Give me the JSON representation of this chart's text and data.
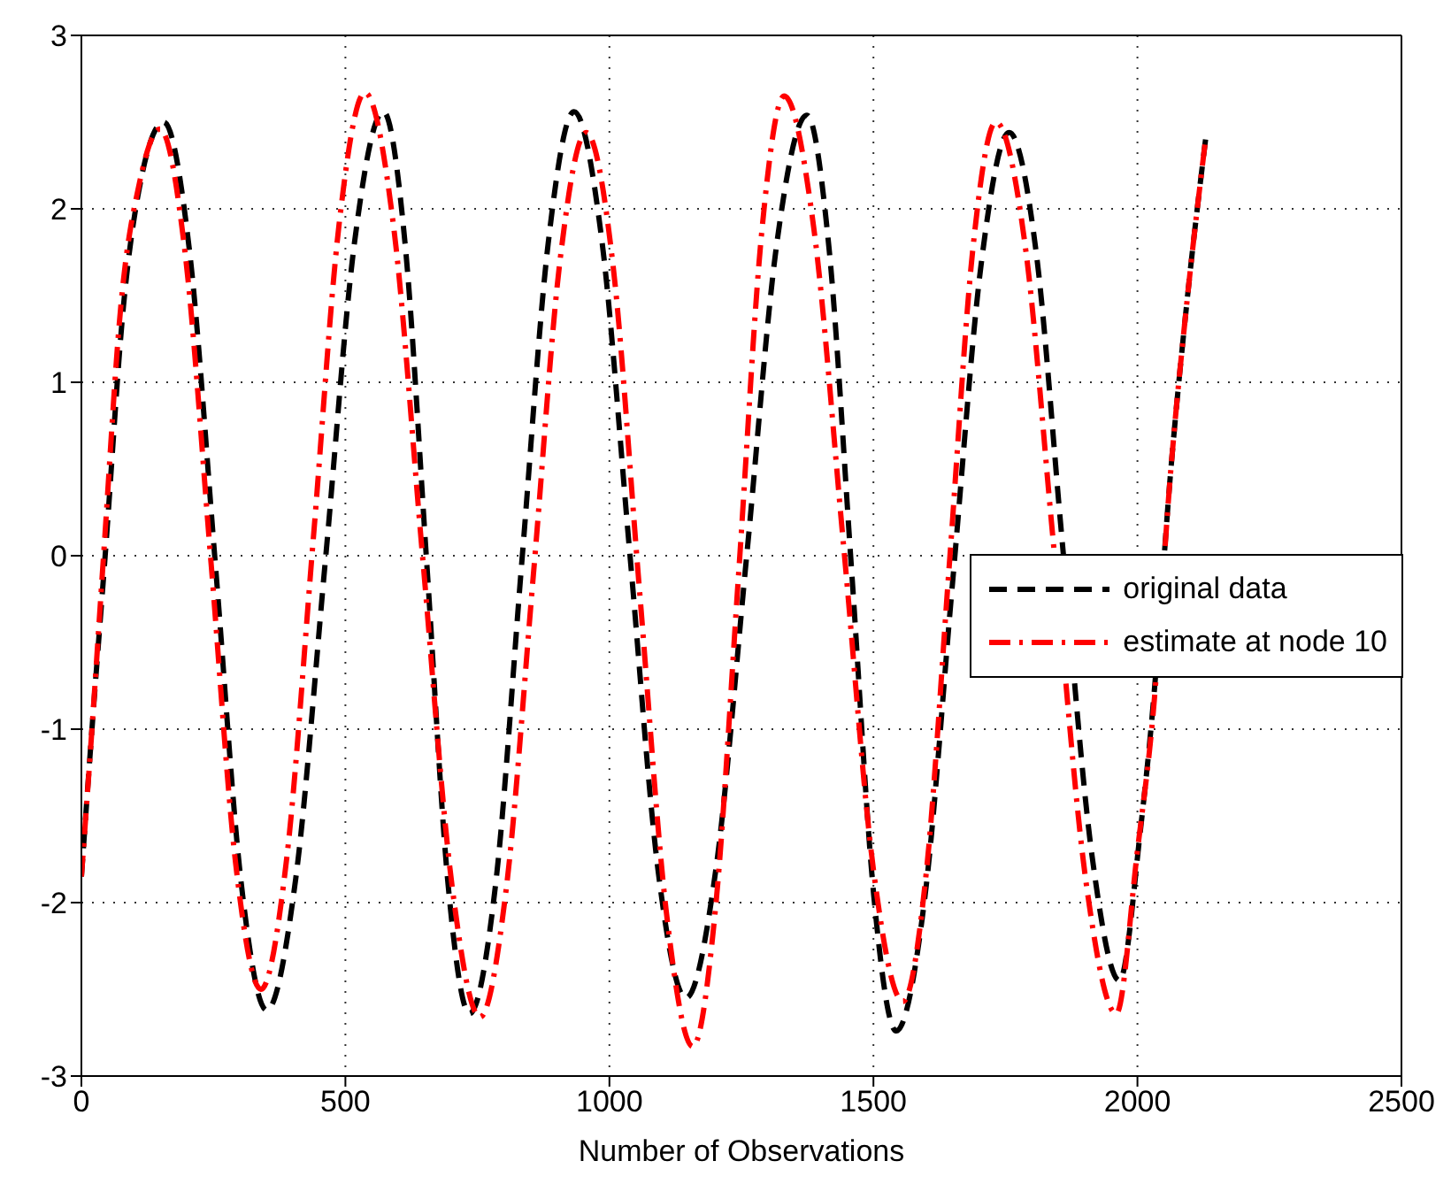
{
  "chart_data": {
    "type": "line",
    "xlabel": "Number of Observations",
    "xlim": [
      0,
      2500
    ],
    "xticks": [
      0,
      500,
      1000,
      1500,
      2000,
      2500
    ],
    "ylim": [
      -3,
      3
    ],
    "yticks": [
      -3,
      -2,
      -1,
      0,
      1,
      2,
      3
    ],
    "grid": true,
    "legend": "right",
    "marker": "none",
    "series": [
      {
        "name": "original data",
        "color": "#000000",
        "line_style": "dashed",
        "x": [
          0,
          20,
          45,
          80,
          115,
          156,
          205,
          254,
          302,
          351,
          406,
          462,
          517,
          572,
          613,
          654,
          694,
          735,
          785,
          834,
          884,
          933,
          986,
          1039,
          1092,
          1145,
          1202,
          1260,
          1317,
          1374,
          1416,
          1459,
          1501,
          1543,
          1597,
          1650,
          1704,
          1757,
          1809,
          1857,
          1914,
          1966,
          2005,
          2030,
          2062,
          2095,
          2129
        ],
        "values": [
          -1.85,
          -1.0,
          0,
          1.45,
          2.2,
          2.5,
          1.75,
          -0.06,
          -1.87,
          -2.62,
          -1.86,
          -0.03,
          1.8,
          2.56,
          1.8,
          -0.04,
          -1.88,
          -2.64,
          -1.88,
          -0.04,
          1.8,
          2.56,
          1.81,
          0,
          -1.81,
          -2.55,
          -1.8,
          0,
          1.8,
          2.54,
          1.77,
          -0.1,
          -1.97,
          -2.74,
          -1.98,
          -0.15,
          1.68,
          2.44,
          1.73,
          0.1,
          -1.73,
          -2.45,
          -1.6,
          -0.85,
          0.45,
          1.5,
          2.4
        ]
      },
      {
        "name": "estimate at node 10",
        "color": "#ff0000",
        "line_style": "dashdot",
        "x": [
          0,
          20,
          42,
          75,
          110,
          149,
          197,
          245,
          292,
          340,
          389,
          439,
          488,
          537,
          592,
          646,
          701,
          755,
          805,
          856,
          906,
          956,
          1007,
          1057,
          1108,
          1158,
          1201,
          1245,
          1288,
          1331,
          1387,
          1444,
          1500,
          1556,
          1600,
          1644,
          1688,
          1732,
          1789,
          1840,
          1903,
          1960,
          2000,
          2030,
          2062,
          2095,
          2129
        ],
        "values": [
          -1.85,
          -1.0,
          0,
          1.45,
          2.15,
          2.46,
          1.73,
          -0.02,
          -1.77,
          -2.5,
          -1.74,
          0.09,
          1.91,
          2.67,
          1.88,
          0,
          -1.88,
          -2.66,
          -1.91,
          -0.11,
          1.69,
          2.44,
          1.67,
          -0.2,
          -2.06,
          -2.83,
          -2.03,
          -0.09,
          1.85,
          2.65,
          1.89,
          0.04,
          -1.81,
          -2.57,
          -1.83,
          -0.04,
          1.76,
          2.5,
          1.75,
          0.1,
          -1.89,
          -2.64,
          -1.7,
          -0.9,
          0.45,
          1.5,
          2.4
        ]
      }
    ]
  }
}
